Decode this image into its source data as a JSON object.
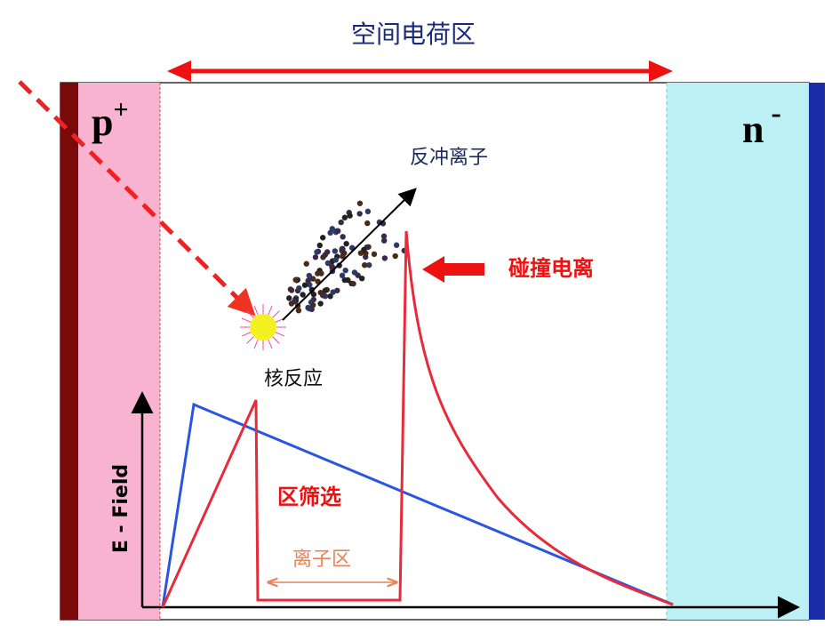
{
  "header": {
    "title": "空间电荷区"
  },
  "regions": {
    "p_label": "p",
    "p_sup": "+",
    "n_label": "n",
    "n_sup": "-"
  },
  "labels": {
    "recoil": "反冲离子",
    "impact": "碰撞电离",
    "reaction": "核反应",
    "axis": "E - Field",
    "filter": "区筛选",
    "ion_zone": "离子区"
  }
}
